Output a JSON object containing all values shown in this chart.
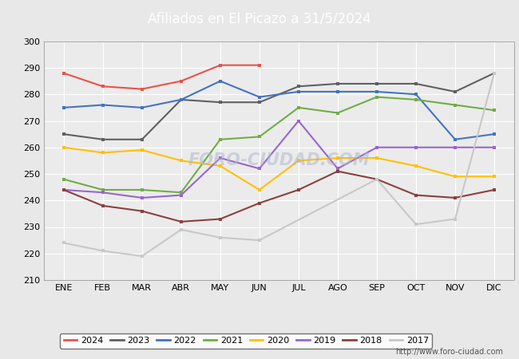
{
  "title": "Afiliados en El Picazo a 31/5/2024",
  "title_bg_color": "#4f81bd",
  "title_text_color": "white",
  "ylim": [
    210,
    300
  ],
  "yticks": [
    210,
    220,
    230,
    240,
    250,
    260,
    270,
    280,
    290,
    300
  ],
  "months": [
    "ENE",
    "FEB",
    "MAR",
    "ABR",
    "MAY",
    "JUN",
    "JUL",
    "AGO",
    "SEP",
    "OCT",
    "NOV",
    "DIC"
  ],
  "watermark": "FORO-CIUDAD.COM",
  "url": "http://www.foro-ciudad.com",
  "series": [
    {
      "year": "2024",
      "color": "#e8534a",
      "data": [
        288,
        283,
        282,
        285,
        291,
        291,
        null,
        null,
        null,
        null,
        null,
        null
      ]
    },
    {
      "year": "2023",
      "color": "#606060",
      "data": [
        265,
        263,
        263,
        278,
        277,
        277,
        283,
        284,
        284,
        284,
        281,
        288
      ]
    },
    {
      "year": "2022",
      "color": "#4472c4",
      "data": [
        275,
        276,
        275,
        278,
        285,
        279,
        281,
        281,
        281,
        280,
        263,
        265
      ]
    },
    {
      "year": "2021",
      "color": "#70ad47",
      "data": [
        248,
        244,
        244,
        243,
        263,
        264,
        275,
        273,
        279,
        278,
        276,
        274
      ]
    },
    {
      "year": "2020",
      "color": "#ffc000",
      "data": [
        260,
        258,
        259,
        255,
        253,
        244,
        255,
        256,
        256,
        253,
        249,
        249
      ]
    },
    {
      "year": "2019",
      "color": "#9966cc",
      "data": [
        244,
        243,
        241,
        242,
        256,
        252,
        270,
        252,
        260,
        260,
        260,
        260
      ]
    },
    {
      "year": "2018",
      "color": "#8b4040",
      "data": [
        244,
        238,
        236,
        232,
        233,
        239,
        244,
        251,
        248,
        242,
        241,
        244
      ]
    },
    {
      "year": "2017",
      "color": "#c8c8c8",
      "data": [
        224,
        221,
        219,
        229,
        226,
        225,
        null,
        null,
        248,
        231,
        233,
        288
      ]
    }
  ],
  "background_color": "#e8e8e8",
  "plot_bg_color": "#ebebeb",
  "grid_color": "white",
  "legend_border_color": "#555555"
}
